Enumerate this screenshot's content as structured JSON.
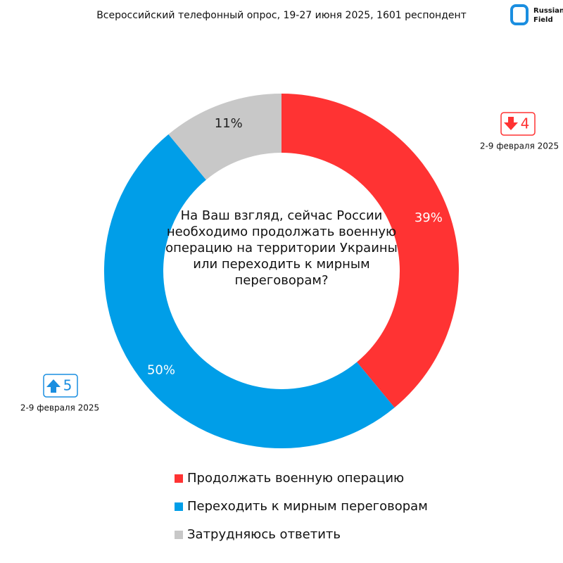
{
  "chart_data": {
    "type": "donut",
    "title": "Всероссийский телефонный опрос, 19-27 июня 2025, 1601 респондент",
    "center_text": [
      "На Ваш взгляд, сейчас России",
      "необходимо продолжать военную",
      "операцию на территории Украины",
      "или переходить к мирным",
      "переговорам?"
    ],
    "categories": [
      "Продолжать военную операцию",
      "Переходить к мирным переговорам",
      "Затрудняюсь ответить"
    ],
    "values": [
      39,
      50,
      11
    ],
    "value_labels": [
      "39%",
      "50%",
      "11%"
    ],
    "colors": [
      "#ff3333",
      "#009ee8",
      "#c8c8c8"
    ],
    "legend": "bottom",
    "annotations": [
      {
        "value": 4,
        "direction": "down",
        "color": "#ff3333",
        "note": "2-9 февраля 2025"
      },
      {
        "value": 5,
        "direction": "up",
        "color": "#1a8ee0",
        "note": "2-9 февраля 2025"
      }
    ]
  },
  "logo": {
    "lines": [
      "Russian",
      "Field"
    ]
  }
}
